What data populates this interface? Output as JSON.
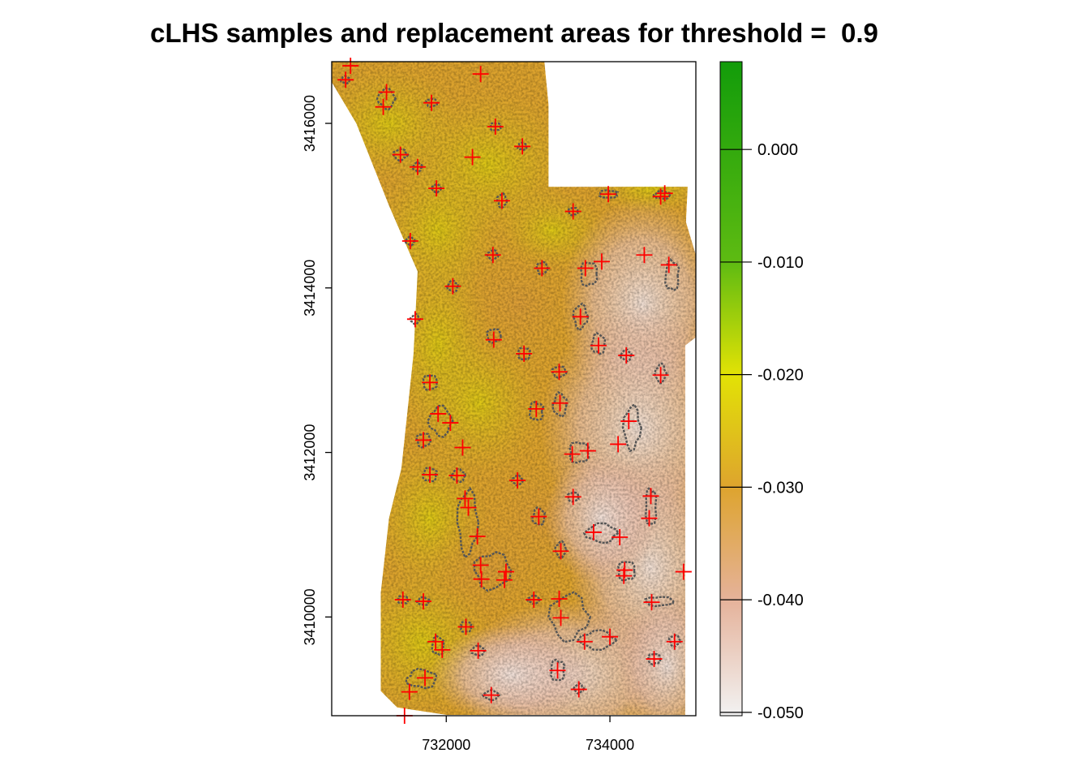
{
  "chart_data": {
    "type": "heatmap",
    "title": "cLHS samples and replacement areas for threshold =  0.9",
    "xlabel": "",
    "ylabel": "",
    "xlim": [
      730600,
      735050
    ],
    "ylim": [
      3408800,
      3416750
    ],
    "x_ticks": [
      {
        "value": 732000,
        "label": "732000"
      },
      {
        "value": 734000,
        "label": "734000"
      }
    ],
    "y_ticks": [
      {
        "value": 3410000,
        "label": "3410000"
      },
      {
        "value": 3412000,
        "label": "3412000"
      },
      {
        "value": 3414000,
        "label": "3414000"
      },
      {
        "value": 3416000,
        "label": "3416000"
      }
    ],
    "legend": {
      "placement": "right",
      "range": [
        -0.0503,
        0.0078
      ],
      "ticks": [
        {
          "value": 0.0,
          "label": "0.000"
        },
        {
          "value": -0.01,
          "label": "-0.010"
        },
        {
          "value": -0.02,
          "label": "-0.020"
        },
        {
          "value": -0.03,
          "label": "-0.030"
        },
        {
          "value": -0.04,
          "label": "-0.040"
        },
        {
          "value": -0.05,
          "label": "-0.050"
        }
      ],
      "colors": [
        {
          "value": 0.0078,
          "color": "#129c0a"
        },
        {
          "value": -0.01,
          "color": "#5ebb12"
        },
        {
          "value": -0.02,
          "color": "#e2e205"
        },
        {
          "value": -0.03,
          "color": "#dea42e"
        },
        {
          "value": -0.04,
          "color": "#e5b29a"
        },
        {
          "value": -0.0503,
          "color": "#f2f2f2"
        }
      ]
    },
    "boundary": [
      [
        730600,
        3416750
      ],
      [
        731200,
        3416750
      ],
      [
        731800,
        3416750
      ],
      [
        732300,
        3416750
      ],
      [
        733200,
        3416750
      ],
      [
        733250,
        3416230
      ],
      [
        733250,
        3415230
      ],
      [
        734950,
        3415230
      ],
      [
        734930,
        3414800
      ],
      [
        735050,
        3414400
      ],
      [
        735050,
        3413400
      ],
      [
        734920,
        3413300
      ],
      [
        734920,
        3408810
      ],
      [
        732000,
        3408810
      ],
      [
        731400,
        3408900
      ],
      [
        731200,
        3409100
      ],
      [
        731200,
        3410300
      ],
      [
        731300,
        3411200
      ],
      [
        731450,
        3411800
      ],
      [
        731600,
        3413200
      ],
      [
        731650,
        3414200
      ],
      [
        731300,
        3415000
      ],
      [
        730900,
        3416000
      ],
      [
        730600,
        3416500
      ]
    ],
    "samples": [
      [
        730770,
        3416530
      ],
      [
        730830,
        3416700
      ],
      [
        731270,
        3416380
      ],
      [
        731230,
        3416200
      ],
      [
        731440,
        3415620
      ],
      [
        731820,
        3416250
      ],
      [
        732420,
        3416600
      ],
      [
        732600,
        3415960
      ],
      [
        732320,
        3415590
      ],
      [
        732930,
        3415720
      ],
      [
        731650,
        3415470
      ],
      [
        731880,
        3415210
      ],
      [
        732680,
        3415060
      ],
      [
        733550,
        3414930
      ],
      [
        733980,
        3415140
      ],
      [
        734620,
        3415110
      ],
      [
        734670,
        3415150
      ],
      [
        731560,
        3414570
      ],
      [
        732570,
        3414400
      ],
      [
        733170,
        3414240
      ],
      [
        733700,
        3414240
      ],
      [
        733900,
        3414320
      ],
      [
        734420,
        3414400
      ],
      [
        734720,
        3414280
      ],
      [
        732080,
        3414020
      ],
      [
        731620,
        3413620
      ],
      [
        733640,
        3413650
      ],
      [
        732580,
        3413370
      ],
      [
        732950,
        3413200
      ],
      [
        733860,
        3413300
      ],
      [
        734200,
        3413180
      ],
      [
        734620,
        3412940
      ],
      [
        733380,
        3412980
      ],
      [
        731800,
        3412850
      ],
      [
        733100,
        3412530
      ],
      [
        733390,
        3412600
      ],
      [
        731900,
        3412470
      ],
      [
        732050,
        3412360
      ],
      [
        734230,
        3412380
      ],
      [
        731720,
        3412150
      ],
      [
        732200,
        3412060
      ],
      [
        733540,
        3411980
      ],
      [
        733730,
        3412020
      ],
      [
        734100,
        3412100
      ],
      [
        731800,
        3411730
      ],
      [
        732130,
        3411720
      ],
      [
        732870,
        3411660
      ],
      [
        732230,
        3411440
      ],
      [
        733550,
        3411460
      ],
      [
        734500,
        3411470
      ],
      [
        732270,
        3411330
      ],
      [
        733130,
        3411220
      ],
      [
        734480,
        3411200
      ],
      [
        732380,
        3410980
      ],
      [
        733800,
        3411030
      ],
      [
        734120,
        3410970
      ],
      [
        733400,
        3410800
      ],
      [
        732420,
        3410630
      ],
      [
        732730,
        3410550
      ],
      [
        734180,
        3410570
      ],
      [
        734900,
        3410550
      ],
      [
        732430,
        3410460
      ],
      [
        732710,
        3410450
      ],
      [
        734170,
        3410500
      ],
      [
        731470,
        3410210
      ],
      [
        731720,
        3410190
      ],
      [
        733070,
        3410210
      ],
      [
        733380,
        3410220
      ],
      [
        734510,
        3410180
      ],
      [
        733400,
        3409990
      ],
      [
        732240,
        3409880
      ],
      [
        731870,
        3409700
      ],
      [
        731950,
        3409600
      ],
      [
        732390,
        3409590
      ],
      [
        733690,
        3409700
      ],
      [
        734000,
        3409760
      ],
      [
        734790,
        3409700
      ],
      [
        734540,
        3409490
      ],
      [
        733360,
        3409350
      ],
      [
        731740,
        3409260
      ],
      [
        731550,
        3409090
      ],
      [
        732550,
        3409050
      ],
      [
        733620,
        3409120
      ],
      [
        731490,
        3408800
      ]
    ],
    "replacement_areas": [
      [
        730770,
        3416530,
        60,
        45
      ],
      [
        731270,
        3416300,
        110,
        130
      ],
      [
        731440,
        3415620,
        90,
        70
      ],
      [
        731820,
        3416250,
        70,
        50
      ],
      [
        732600,
        3415960,
        70,
        50
      ],
      [
        732930,
        3415720,
        60,
        45
      ],
      [
        731650,
        3415470,
        60,
        55
      ],
      [
        731880,
        3415210,
        60,
        50
      ],
      [
        732680,
        3415060,
        60,
        90
      ],
      [
        733550,
        3414930,
        60,
        50
      ],
      [
        733980,
        3415140,
        120,
        50
      ],
      [
        734640,
        3415130,
        110,
        50
      ],
      [
        731560,
        3414570,
        60,
        50
      ],
      [
        732570,
        3414400,
        70,
        60
      ],
      [
        733170,
        3414240,
        70,
        80
      ],
      [
        733740,
        3414170,
        110,
        160
      ],
      [
        734760,
        3414150,
        90,
        200
      ],
      [
        732080,
        3414020,
        70,
        70
      ],
      [
        731620,
        3413620,
        60,
        60
      ],
      [
        733640,
        3413650,
        90,
        160
      ],
      [
        732580,
        3413420,
        90,
        90
      ],
      [
        732950,
        3413200,
        80,
        80
      ],
      [
        733860,
        3413320,
        90,
        130
      ],
      [
        734200,
        3413180,
        70,
        70
      ],
      [
        734620,
        3412960,
        70,
        120
      ],
      [
        733380,
        3412980,
        90,
        70
      ],
      [
        731800,
        3412850,
        90,
        100
      ],
      [
        733100,
        3412500,
        90,
        120
      ],
      [
        733390,
        3412580,
        90,
        150
      ],
      [
        731930,
        3412380,
        150,
        190
      ],
      [
        734270,
        3412300,
        110,
        280
      ],
      [
        731720,
        3412150,
        90,
        90
      ],
      [
        733620,
        3412000,
        130,
        140
      ],
      [
        731800,
        3411730,
        90,
        90
      ],
      [
        732150,
        3411720,
        90,
        80
      ],
      [
        732870,
        3411660,
        70,
        60
      ],
      [
        732260,
        3411150,
        130,
        420
      ],
      [
        733550,
        3411460,
        70,
        60
      ],
      [
        734500,
        3411340,
        70,
        250
      ],
      [
        733130,
        3411220,
        80,
        110
      ],
      [
        733900,
        3411020,
        210,
        120
      ],
      [
        733400,
        3410820,
        70,
        100
      ],
      [
        732560,
        3410560,
        230,
        240
      ],
      [
        734200,
        3410560,
        110,
        130
      ],
      [
        731470,
        3410210,
        70,
        50
      ],
      [
        731720,
        3410190,
        80,
        50
      ],
      [
        733070,
        3410210,
        80,
        50
      ],
      [
        733500,
        3410000,
        250,
        300
      ],
      [
        734600,
        3410190,
        180,
        60
      ],
      [
        732240,
        3409880,
        70,
        70
      ],
      [
        731900,
        3409650,
        80,
        120
      ],
      [
        732390,
        3409590,
        90,
        60
      ],
      [
        733850,
        3409720,
        230,
        120
      ],
      [
        734790,
        3409710,
        70,
        70
      ],
      [
        734540,
        3409490,
        80,
        70
      ],
      [
        733360,
        3409350,
        90,
        140
      ],
      [
        731700,
        3409250,
        200,
        120
      ],
      [
        732550,
        3409050,
        100,
        60
      ],
      [
        733620,
        3409130,
        60,
        60
      ]
    ],
    "grid": false
  }
}
